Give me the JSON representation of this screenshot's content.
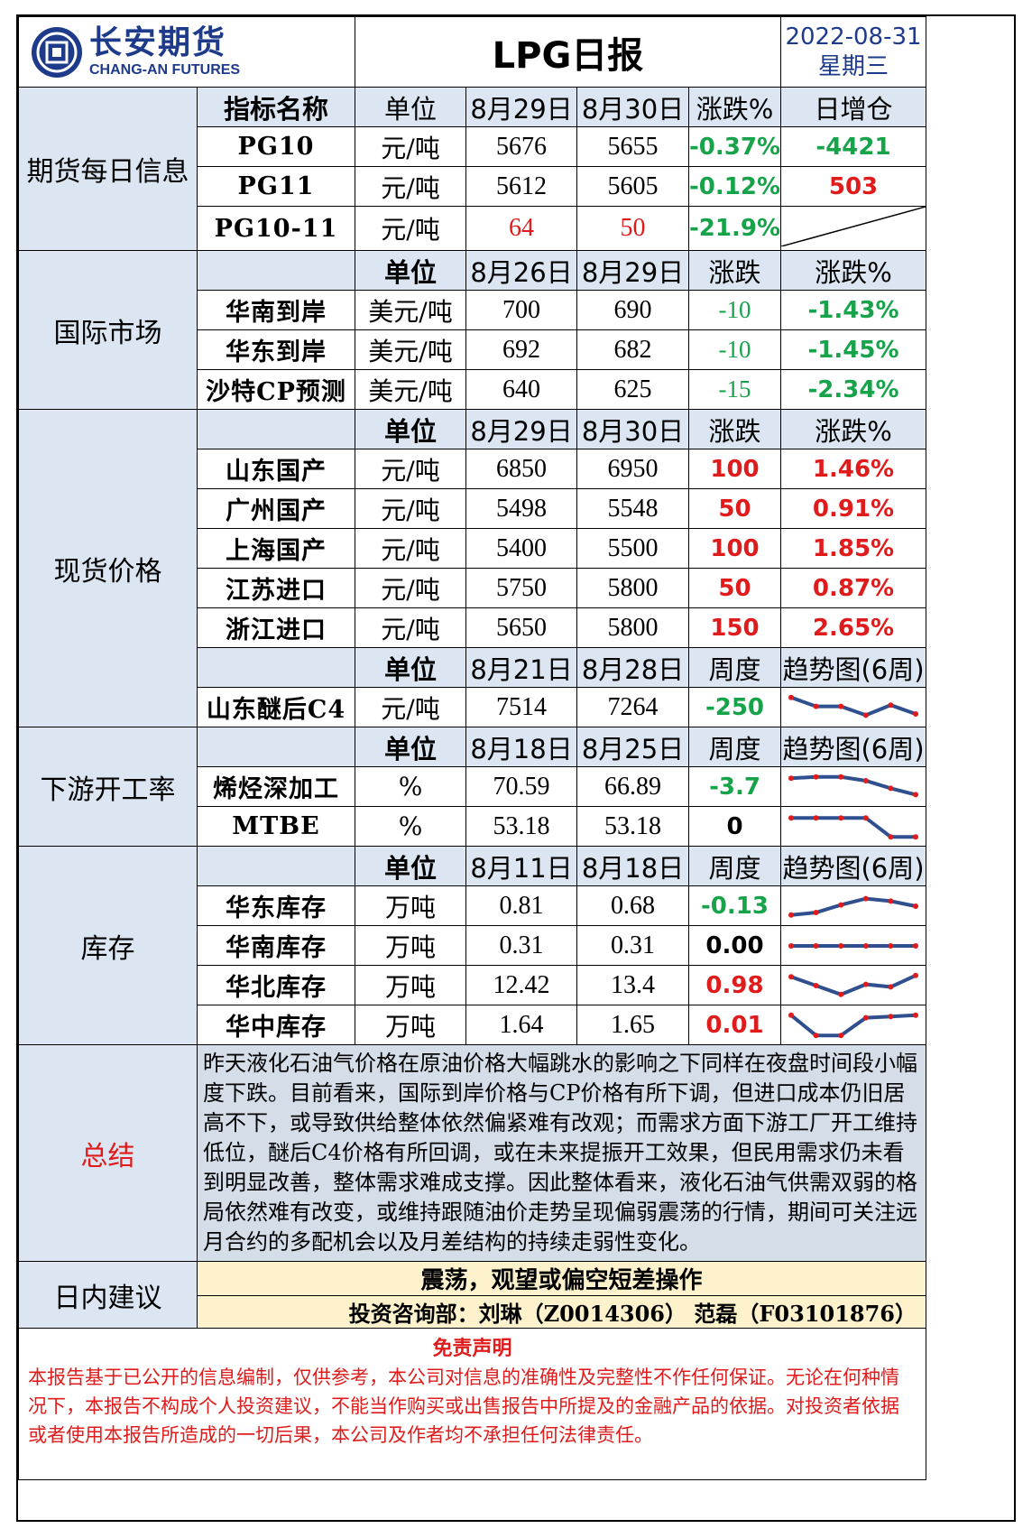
{
  "header": {
    "logo_cn": "长安期货",
    "logo_en": "CHANG-AN FUTURES",
    "title": "LPG日报",
    "date": "2022-08-31",
    "weekday": "星期三"
  },
  "futures": {
    "section": "期货每日信息",
    "headers": [
      "指标名称",
      "单位",
      "8月29日",
      "8月30日",
      "涨跌%",
      "日增仓"
    ],
    "rows": [
      {
        "name": "PG10",
        "unit": "元/吨",
        "v1": "5676",
        "v2": "5655",
        "chg": "-0.37%",
        "oi": "-4421"
      },
      {
        "name": "PG11",
        "unit": "元/吨",
        "v1": "5612",
        "v2": "5605",
        "chg": "-0.12%",
        "oi": "503"
      },
      {
        "name": "PG10-11",
        "unit": "元/吨",
        "v1": "64",
        "v2": "50",
        "chg": "-21.9%",
        "oi": ""
      }
    ]
  },
  "intl": {
    "section": "国际市场",
    "headers": [
      "单位",
      "8月26日",
      "8月29日",
      "涨跌",
      "涨跌%"
    ],
    "rows": [
      {
        "name": "华南到岸",
        "unit": "美元/吨",
        "v1": "700",
        "v2": "690",
        "chg": "-10",
        "pct": "-1.43%"
      },
      {
        "name": "华东到岸",
        "unit": "美元/吨",
        "v1": "692",
        "v2": "682",
        "chg": "-10",
        "pct": "-1.45%"
      },
      {
        "name": "沙特CP预测",
        "unit": "美元/吨",
        "v1": "640",
        "v2": "625",
        "chg": "-15",
        "pct": "-2.34%"
      }
    ]
  },
  "spot": {
    "section": "现货价格",
    "headers": [
      "单位",
      "8月29日",
      "8月30日",
      "涨跌",
      "涨跌%"
    ],
    "rows": [
      {
        "name": "山东国产",
        "unit": "元/吨",
        "v1": "6850",
        "v2": "6950",
        "chg": "100",
        "pct": "1.46%"
      },
      {
        "name": "广州国产",
        "unit": "元/吨",
        "v1": "5498",
        "v2": "5548",
        "chg": "50",
        "pct": "0.91%"
      },
      {
        "name": "上海国产",
        "unit": "元/吨",
        "v1": "5400",
        "v2": "5500",
        "chg": "100",
        "pct": "1.85%"
      },
      {
        "name": "江苏进口",
        "unit": "元/吨",
        "v1": "5750",
        "v2": "5800",
        "chg": "50",
        "pct": "0.87%"
      },
      {
        "name": "浙江进口",
        "unit": "元/吨",
        "v1": "5650",
        "v2": "5800",
        "chg": "150",
        "pct": "2.65%"
      }
    ],
    "headers2": [
      "单位",
      "8月21日",
      "8月28日",
      "周度",
      "趋势图(6周)"
    ],
    "c4": {
      "name": "山东醚后C4",
      "unit": "元/吨",
      "v1": "7514",
      "v2": "7264",
      "chg": "-250",
      "trend": [
        0.9,
        0.55,
        0.55,
        0.2,
        0.6,
        0.25
      ]
    }
  },
  "downstream": {
    "section": "下游开工率",
    "headers": [
      "单位",
      "8月18日",
      "8月25日",
      "周度",
      "趋势图(6周)"
    ],
    "rows": [
      {
        "name": "烯烃深加工",
        "unit": "%",
        "v1": "70.59",
        "v2": "66.89",
        "chg": "-3.7",
        "trend": [
          0.85,
          0.9,
          0.9,
          0.75,
          0.45,
          0.2
        ]
      },
      {
        "name": "MTBE",
        "unit": "%",
        "v1": "53.18",
        "v2": "53.18",
        "chg": "0",
        "trend": [
          0.85,
          0.85,
          0.85,
          0.85,
          0.1,
          0.1
        ]
      }
    ]
  },
  "inventory": {
    "section": "库存",
    "headers": [
      "单位",
      "8月11日",
      "8月18日",
      "周度",
      "趋势图(6周)"
    ],
    "rows": [
      {
        "name": "华东库存",
        "unit": "万吨",
        "v1": "0.81",
        "v2": "0.68",
        "chg": "-0.13",
        "trend": [
          0.15,
          0.25,
          0.55,
          0.8,
          0.7,
          0.5
        ]
      },
      {
        "name": "华南库存",
        "unit": "万吨",
        "v1": "0.31",
        "v2": "0.31",
        "chg": "0.00",
        "trend": [
          0.5,
          0.5,
          0.5,
          0.5,
          0.5,
          0.5
        ]
      },
      {
        "name": "华北库存",
        "unit": "万吨",
        "v1": "12.42",
        "v2": "13.4",
        "chg": "0.98",
        "trend": [
          0.85,
          0.5,
          0.15,
          0.55,
          0.45,
          0.9
        ]
      },
      {
        "name": "华中库存",
        "unit": "万吨",
        "v1": "1.64",
        "v2": "1.65",
        "chg": "0.01",
        "trend": [
          0.9,
          0.1,
          0.1,
          0.8,
          0.85,
          0.9
        ]
      }
    ]
  },
  "summary": {
    "section": "总结",
    "text": "昨天液化石油气价格在原油价格大幅跳水的影响之下同样在夜盘时间段小幅度下跌。目前看来，国际到岸价格与CP价格有所下调，但进口成本仍旧居高不下，或导致供给整体依然偏紧难有改观；而需求方面下游工厂开工维持低位，醚后C4价格有所回调，或在未来提振开工效果，但民用需求仍未看到明显改善，整体需求难成支撑。因此整体看来，液化石油气供需双弱的格局依然难有改变，或维持跟随油价走势呈现偏弱震荡的行情，期间可关注远月合约的多配机会以及月差结构的持续走弱性变化。"
  },
  "advice": {
    "section": "日内建议",
    "line1": "震荡，观望或偏空短差操作",
    "line2": "投资咨询部：刘琳（Z0014306） 范磊（F03101876）"
  },
  "disclaimer": {
    "title": "免责声明",
    "text": "本报告基于已公开的信息编制，仅供参考，本公司对信息的准确性及完整性不作任何保证。无论在何种情况下，本报告不构成个人投资建议，不能当作购买或出售报告中所提及的金融产品的依据。对投资者依据或者使用本报告所造成的一切后果，本公司及作者均不承担任何法律责任。"
  },
  "colors": {
    "brand": "#1e3a8a",
    "up": "#e01b1b",
    "down": "#16a34a",
    "trend_line": "#2f4f8f",
    "trend_dot": "#e01b1b"
  }
}
